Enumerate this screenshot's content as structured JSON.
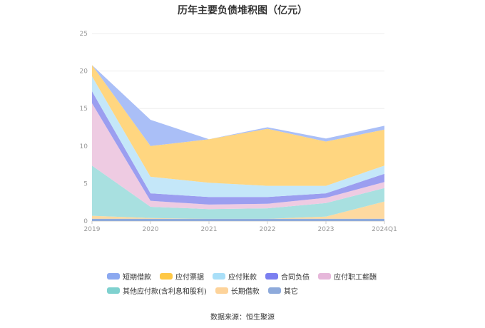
{
  "chart_data": {
    "type": "area",
    "stacked": true,
    "title": "历年主要负债堆积图（亿元）",
    "x": [
      "2019",
      "2020",
      "2021",
      "2022",
      "2023",
      "2024Q1"
    ],
    "ylim": [
      0,
      25
    ],
    "yticks": [
      0,
      5,
      10,
      15,
      20,
      25
    ],
    "grid": true,
    "legend_position": "bottom",
    "series": [
      {
        "name": "其它",
        "color": "#8eaadb",
        "values": [
          0.3,
          0.3,
          0.3,
          0.3,
          0.3,
          0.3
        ]
      },
      {
        "name": "长期借款",
        "color": "#fdd9a0",
        "values": [
          0.4,
          0.1,
          0.0,
          0.0,
          0.3,
          2.3
        ]
      },
      {
        "name": "其他应付款(含利息和股利)",
        "color": "#a8e0e0",
        "values": [
          6.7,
          1.5,
          1.3,
          1.4,
          1.8,
          1.8
        ]
      },
      {
        "name": "应付职工薪酬",
        "color": "#eecbe2",
        "values": [
          8.3,
          0.8,
          0.6,
          0.6,
          0.7,
          0.8
        ]
      },
      {
        "name": "合同负债",
        "color": "#9b9ef0",
        "values": [
          1.6,
          1.0,
          1.0,
          0.9,
          0.6,
          1.1
        ]
      },
      {
        "name": "应付账款",
        "color": "#c4e7f9",
        "values": [
          2.0,
          2.2,
          1.9,
          1.5,
          1.0,
          1.1
        ]
      },
      {
        "name": "应付票据",
        "color": "#ffd680",
        "values": [
          1.5,
          4.1,
          5.8,
          7.6,
          5.9,
          4.8
        ]
      },
      {
        "name": "短期借款",
        "color": "#aabff7",
        "values": [
          0.0,
          3.5,
          0.0,
          0.2,
          0.4,
          0.5
        ]
      }
    ]
  },
  "legend": {
    "row1": [
      {
        "label": "短期借款",
        "color": "#8ca9f0"
      },
      {
        "label": "应付票据",
        "color": "#ffc845"
      },
      {
        "label": "应付账款",
        "color": "#a9dff8"
      },
      {
        "label": "合同负债",
        "color": "#7b7ff0"
      },
      {
        "label": "应付职工薪酬",
        "color": "#e6b7da"
      }
    ],
    "row2": [
      {
        "label": "其他应付款(含利息和股利)",
        "color": "#7fd1cf"
      },
      {
        "label": "长期借款",
        "color": "#fdd39a"
      },
      {
        "label": "其它",
        "color": "#8eaadb"
      }
    ]
  },
  "source": "数据来源：恒生聚源"
}
